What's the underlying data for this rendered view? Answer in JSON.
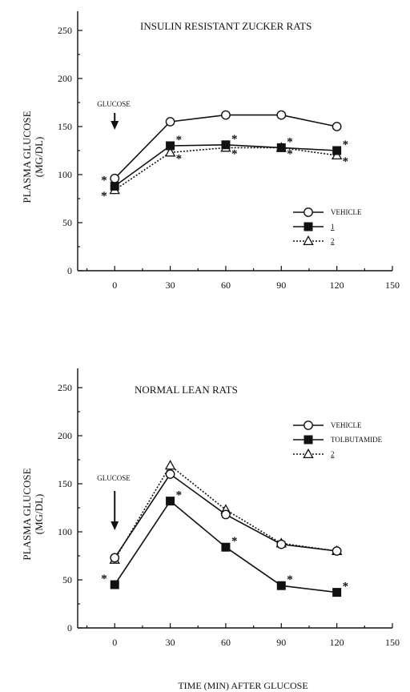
{
  "chart_data": [
    {
      "type": "line",
      "title": "INSULIN RESISTANT ZUCKER RATS",
      "ylabel": "PLASMA GLUCOSE",
      "ylabel_units": "(MG/DL)",
      "xlabel": "",
      "xlim": [
        -20,
        150
      ],
      "ylim": [
        0,
        270
      ],
      "x_ticks": [
        0,
        30,
        60,
        90,
        120,
        150
      ],
      "y_ticks": [
        0,
        50,
        100,
        150,
        200,
        250
      ],
      "annotation": {
        "text": "GLUCOSE",
        "x": 0
      },
      "legend_position": "right",
      "series": [
        {
          "name": "VEHICLE",
          "marker": "open-circle",
          "line": "solid",
          "x": [
            0,
            30,
            60,
            90,
            120
          ],
          "values": [
            96,
            155,
            162,
            162,
            150
          ],
          "stars": [
            false,
            false,
            false,
            false,
            false
          ]
        },
        {
          "name": "1",
          "marker": "filled-square",
          "line": "solid",
          "underline": true,
          "x": [
            0,
            30,
            60,
            90,
            120
          ],
          "values": [
            88,
            130,
            131,
            128,
            125
          ],
          "stars": [
            true,
            true,
            true,
            true,
            true
          ]
        },
        {
          "name": "2",
          "marker": "open-triangle",
          "line": "dotted",
          "underline": true,
          "x": [
            0,
            30,
            60,
            90,
            120
          ],
          "values": [
            84,
            123,
            128,
            128,
            120
          ],
          "stars": [
            true,
            true,
            true,
            true,
            true
          ]
        }
      ]
    },
    {
      "type": "line",
      "title": "NORMAL LEAN RATS",
      "ylabel": "PLASMA GLUCOSE",
      "ylabel_units": "(MG/DL)",
      "xlabel": "TIME (MIN) AFTER GLUCOSE",
      "xlim": [
        -20,
        150
      ],
      "ylim": [
        0,
        270
      ],
      "x_ticks": [
        0,
        30,
        60,
        90,
        120,
        150
      ],
      "y_ticks": [
        0,
        50,
        100,
        150,
        200,
        250
      ],
      "annotation": {
        "text": "GLUCOSE",
        "x": 0
      },
      "legend_position": "right",
      "series": [
        {
          "name": "VEHICLE",
          "marker": "open-circle",
          "line": "solid",
          "x": [
            0,
            30,
            60,
            90,
            120
          ],
          "values": [
            73,
            160,
            118,
            87,
            80
          ],
          "stars": [
            false,
            false,
            false,
            false,
            false
          ]
        },
        {
          "name": "TOLBUTAMIDE",
          "marker": "filled-square",
          "line": "solid",
          "x": [
            0,
            30,
            60,
            90,
            120
          ],
          "values": [
            45,
            132,
            84,
            44,
            37
          ],
          "stars": [
            true,
            true,
            true,
            true,
            true
          ]
        },
        {
          "name": "2",
          "marker": "open-triangle",
          "line": "dotted",
          "underline": true,
          "x": [
            0,
            30,
            60,
            90,
            120
          ],
          "values": [
            71,
            169,
            123,
            88,
            80
          ],
          "stars": [
            false,
            false,
            false,
            false,
            false
          ]
        }
      ]
    }
  ]
}
